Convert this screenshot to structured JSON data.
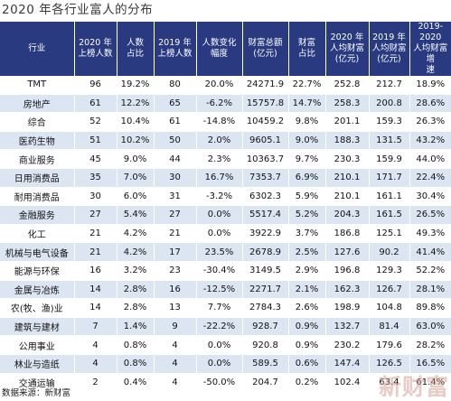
{
  "title": "2020 年各行业富人的分布",
  "headers": [
    [
      "行业"
    ],
    [
      "2020 年",
      "上榜人数"
    ],
    [
      "人数",
      "占比"
    ],
    [
      "2019 年",
      "上榜人数"
    ],
    [
      "人数变化",
      "幅度"
    ],
    [
      "财富总额",
      "(亿元)"
    ],
    [
      "财富",
      "占比"
    ],
    [
      "2020 年",
      "人均财富",
      "(亿元)"
    ],
    [
      "2019 年",
      "人均财富",
      "(亿元)"
    ],
    [
      "2019-2020",
      "人均财富增",
      "速"
    ]
  ],
  "rows": [
    [
      "TMT",
      "96",
      "19.2%",
      "80",
      "20.0%",
      "24271.9",
      "22.7%",
      "252.8",
      "212.7",
      "18.9%"
    ],
    [
      "房地产",
      "61",
      "12.2%",
      "65",
      "-6.2%",
      "15757.8",
      "14.7%",
      "258.3",
      "200.8",
      "28.6%"
    ],
    [
      "综合",
      "52",
      "10.4%",
      "61",
      "-14.8%",
      "10459.2",
      "9.8%",
      "201.1",
      "159.3",
      "26.3%"
    ],
    [
      "医药生物",
      "51",
      "10.2%",
      "50",
      "2.0%",
      "9605.1",
      "9.0%",
      "188.3",
      "131.5",
      "43.2%"
    ],
    [
      "商业服务",
      "45",
      "9.0%",
      "44",
      "2.3%",
      "10363.7",
      "9.7%",
      "230.3",
      "159.9",
      "44.0%"
    ],
    [
      "日用消费品",
      "35",
      "7.0%",
      "30",
      "16.7%",
      "7353.7",
      "6.9%",
      "210.1",
      "171.7",
      "22.4%"
    ],
    [
      "耐用消费品",
      "30",
      "6.0%",
      "31",
      "-3.2%",
      "6302.3",
      "5.9%",
      "210.1",
      "161.1",
      "30.4%"
    ],
    [
      "金融服务",
      "27",
      "5.4%",
      "27",
      "0.0%",
      "5517.4",
      "5.2%",
      "204.3",
      "161.5",
      "26.5%"
    ],
    [
      "化工",
      "21",
      "4.2%",
      "21",
      "0.0%",
      "3922.9",
      "3.7%",
      "186.8",
      "125.1",
      "49.3%"
    ],
    [
      "机械与电气设备",
      "21",
      "4.2%",
      "17",
      "23.5%",
      "2678.9",
      "2.5%",
      "127.6",
      "90.2",
      "41.4%"
    ],
    [
      "能源与环保",
      "16",
      "3.2%",
      "23",
      "-30.4%",
      "3149.5",
      "2.9%",
      "196.8",
      "129.3",
      "52.2%"
    ],
    [
      "金属与冶炼",
      "14",
      "2.8%",
      "16",
      "-12.5%",
      "2271.7",
      "2.1%",
      "162.3",
      "126.7",
      "28.1%"
    ],
    [
      "农(牧、渔)业",
      "14",
      "2.8%",
      "13",
      "7.7%",
      "2784.3",
      "2.6%",
      "198.9",
      "104.8",
      "89.8%"
    ],
    [
      "建筑与建材",
      "7",
      "1.4%",
      "9",
      "-22.2%",
      "928.7",
      "0.9%",
      "132.7",
      "81.4",
      "63.0%"
    ],
    [
      "公用事业",
      "4",
      "0.8%",
      "4",
      "0.0%",
      "920.8",
      "0.9%",
      "230.2",
      "179.6",
      "28.2%"
    ],
    [
      "林业与造纸",
      "4",
      "0.8%",
      "4",
      "0.0%",
      "589.5",
      "0.6%",
      "147.4",
      "126.5",
      "16.5%"
    ],
    [
      "交通运输",
      "2",
      "0.4%",
      "4",
      "-50.0%",
      "204.7",
      "0.2%",
      "102.4",
      "63.4",
      "61.4%"
    ]
  ],
  "source": "数据来源：新财富",
  "watermark": "新财富",
  "colors": {
    "header_bg": "#2a3a80",
    "header_text": "#ffffff",
    "row_alt_bg": "#dce6f3",
    "row_bg": "#ffffff"
  }
}
